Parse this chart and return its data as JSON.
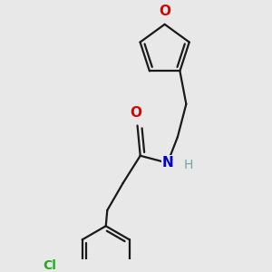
{
  "bg": "#e8e8e8",
  "bc": "#1a1a1a",
  "lw": 1.6,
  "dg": 0.013,
  "O_color": "#dd0000",
  "N_color": "#0000cc",
  "H_color": "#66aaaa",
  "Cl_color": "#22aa22",
  "fs": 11,
  "figsize": [
    3.0,
    3.0
  ],
  "dpi": 100,
  "xlim": [
    0.05,
    0.95
  ],
  "ylim": [
    0.05,
    0.95
  ]
}
